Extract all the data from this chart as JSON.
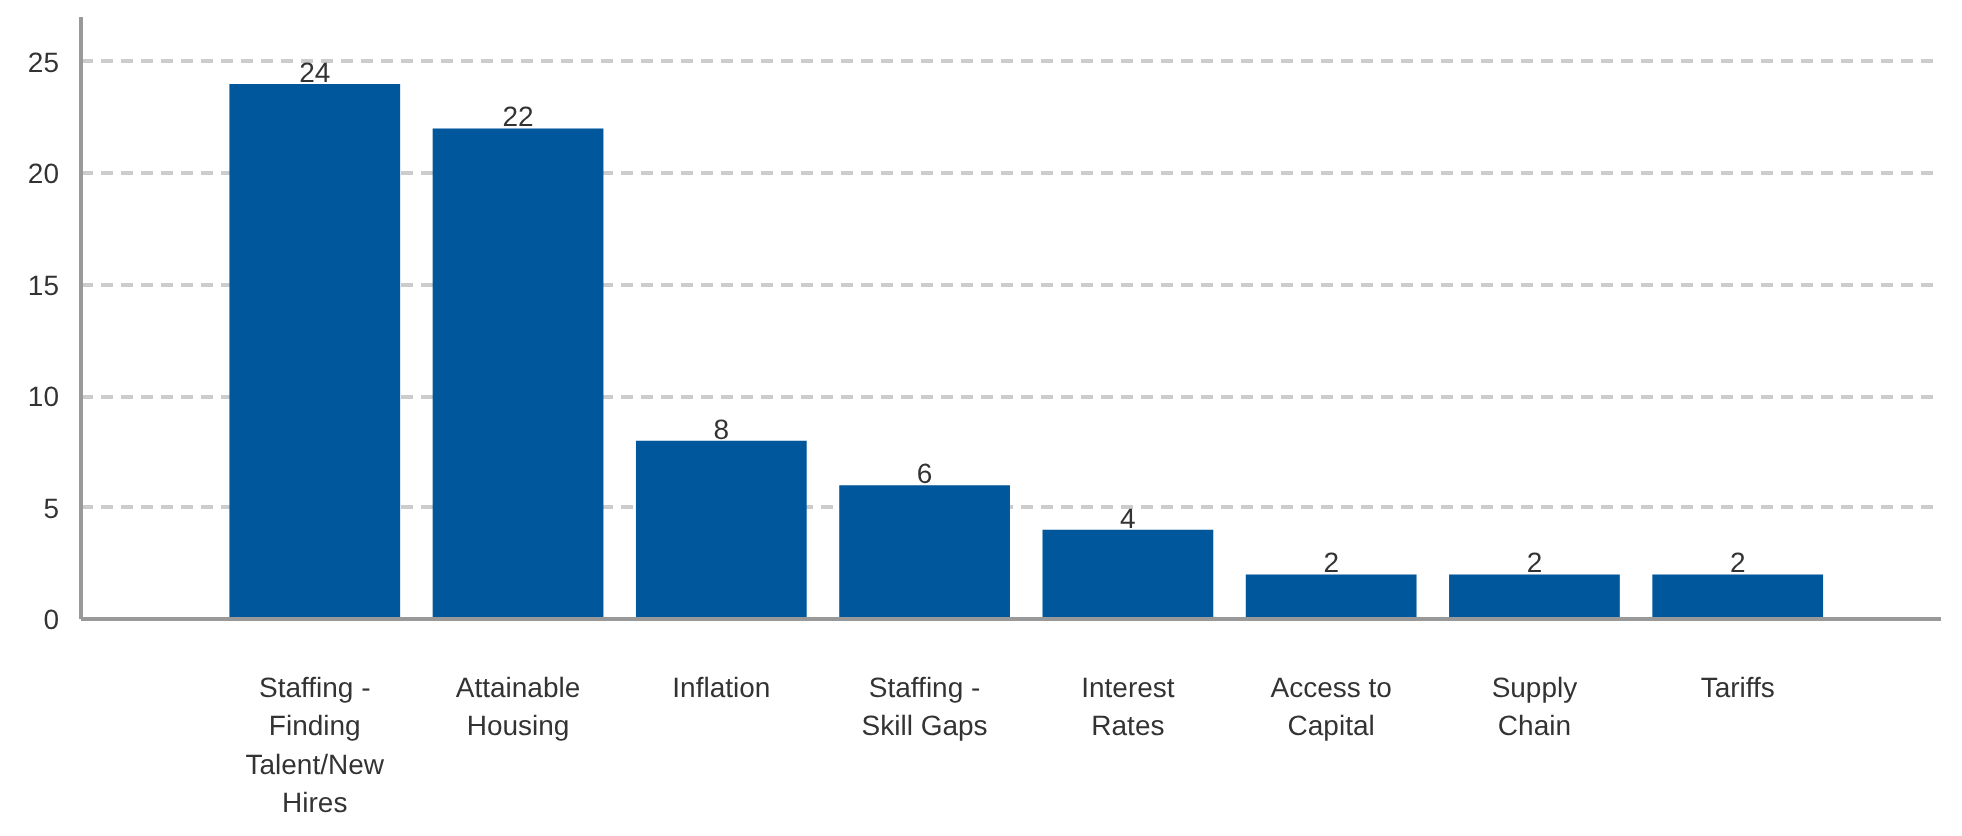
{
  "chart_data": {
    "type": "bar",
    "categories": [
      "Staffing - Finding Talent/New Hires",
      "Attainable Housing",
      "Inflation",
      "Staffing - Skill Gaps",
      "Interest Rates",
      "Access to Capital",
      "Supply Chain",
      "Tariffs"
    ],
    "values": [
      24,
      22,
      8,
      6,
      4,
      2,
      2,
      2
    ],
    "color": "#00579b",
    "ylim": [
      0,
      27
    ],
    "yticks": [
      0,
      5,
      10,
      15,
      20,
      25
    ],
    "grid": "y",
    "data_labels": true
  }
}
